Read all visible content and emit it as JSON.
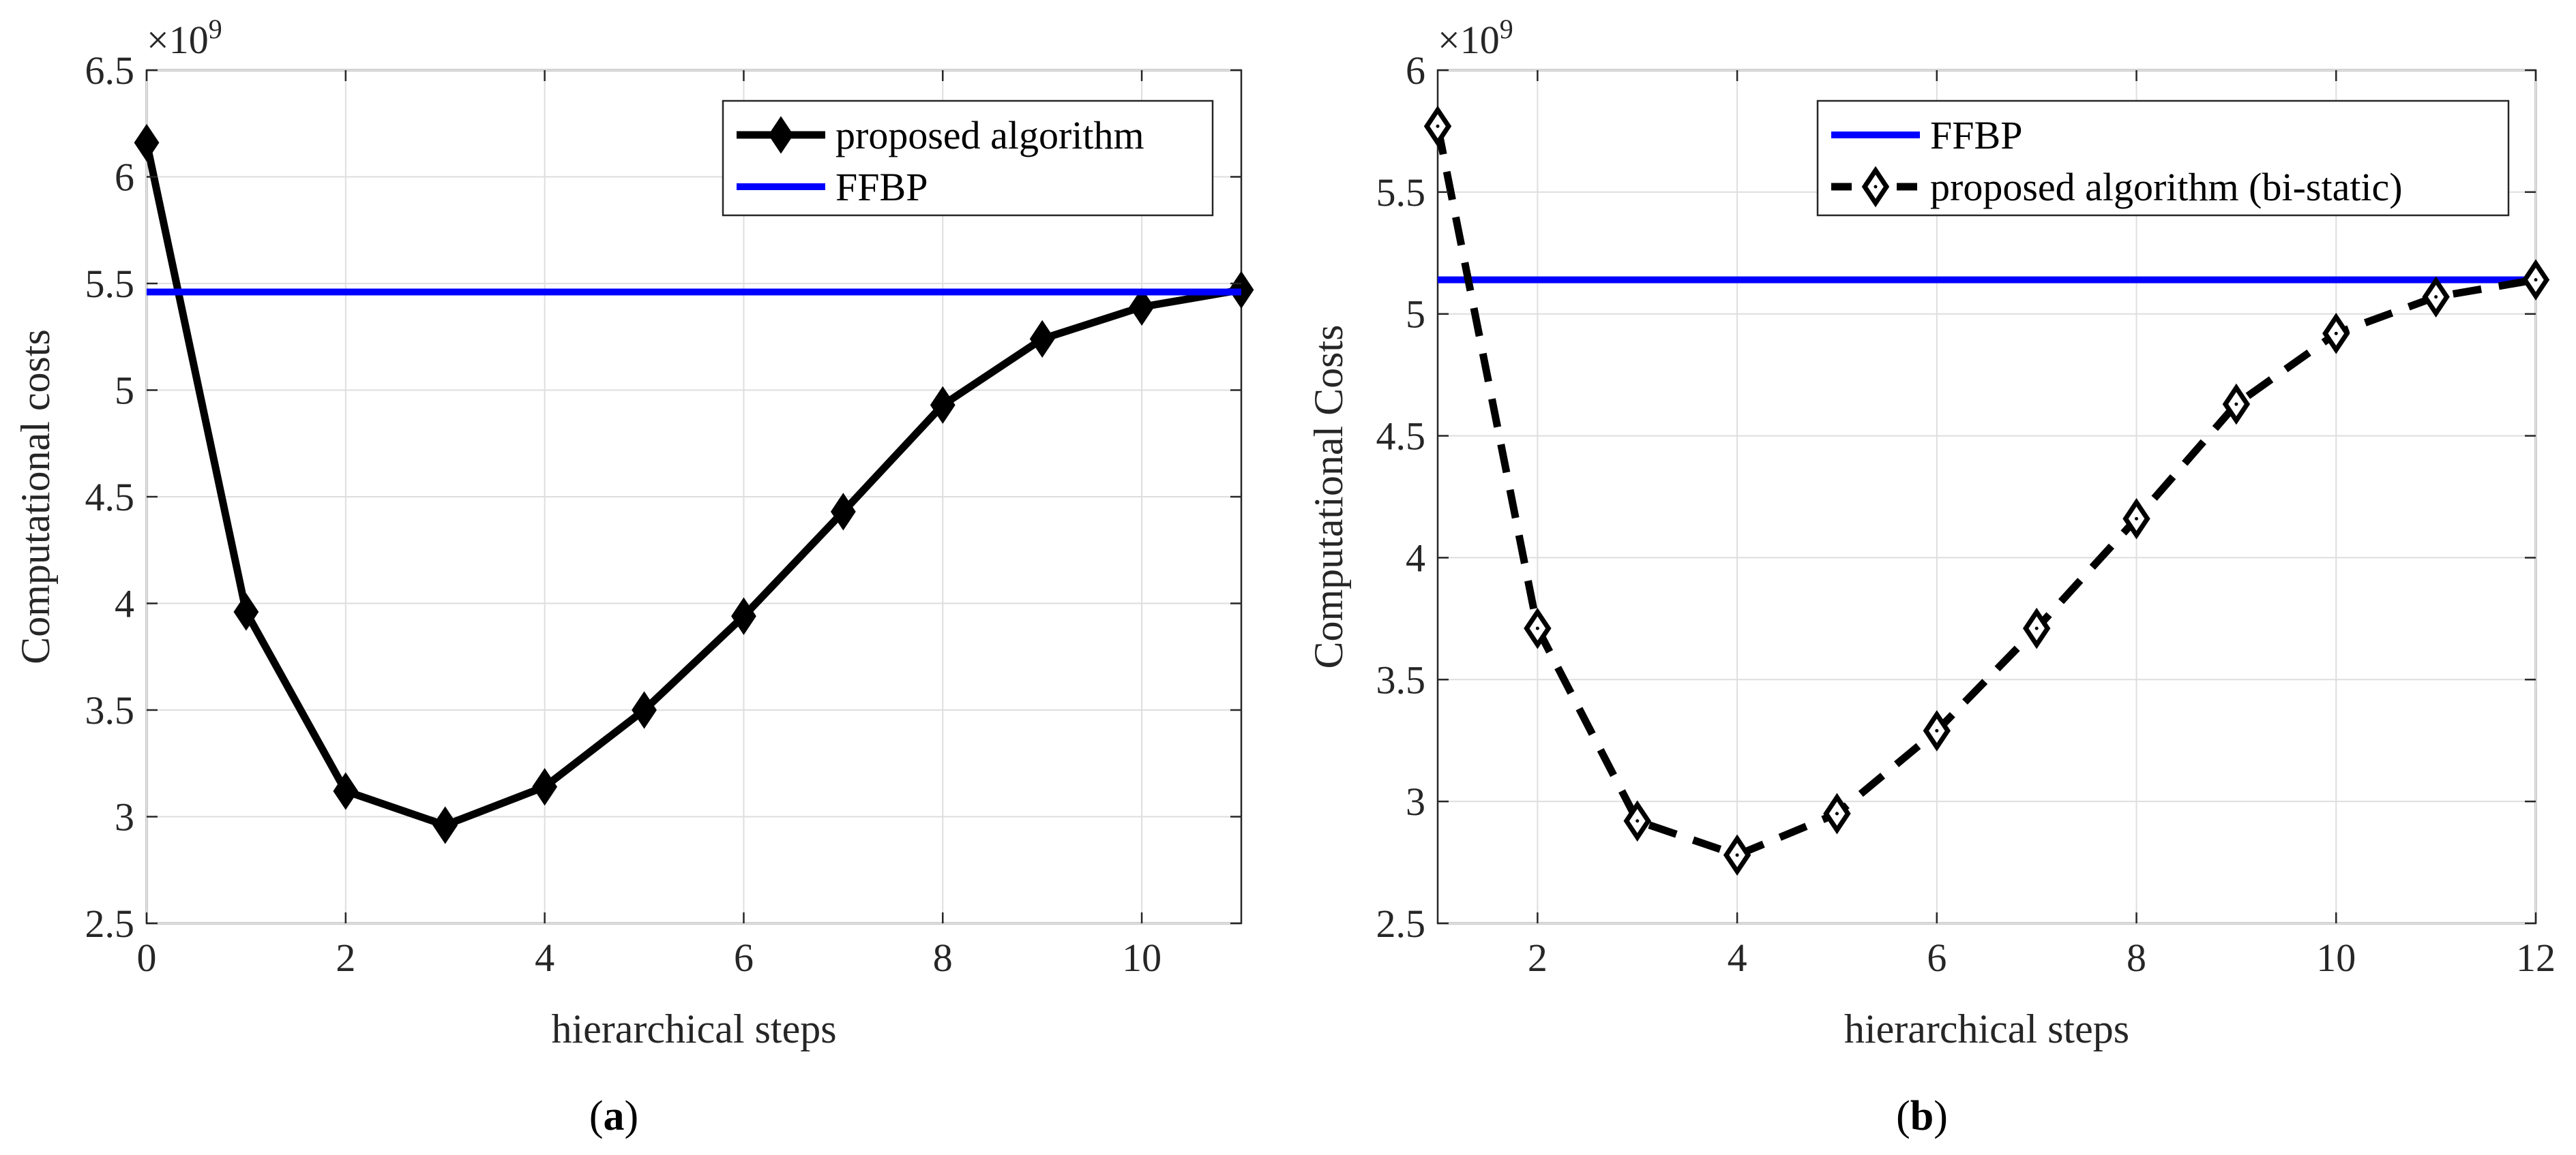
{
  "figure": {
    "panels": [
      {
        "id": "a",
        "label_prefix": "(",
        "label_letter": "a",
        "label_suffix": ")"
      },
      {
        "id": "b",
        "label_prefix": "(",
        "label_letter": "b",
        "label_suffix": ")"
      }
    ]
  },
  "chart_data": [
    {
      "type": "line",
      "title": "",
      "xlabel": "hierarchical steps",
      "ylabel": "Computational costs",
      "exponent_label": "×10",
      "exponent_power": "9",
      "xlim": [
        0,
        11
      ],
      "ylim": [
        2.5,
        6.5
      ],
      "xticks": [
        0,
        2,
        4,
        6,
        8,
        10
      ],
      "xtick_labels": [
        "0",
        "2",
        "4",
        "6",
        "8",
        "10"
      ],
      "yticks": [
        2.5,
        3,
        3.5,
        4,
        4.5,
        5,
        5.5,
        6,
        6.5
      ],
      "ytick_labels": [
        "2.5",
        "3",
        "3.5",
        "4",
        "4.5",
        "5",
        "5.5",
        "6",
        "6.5"
      ],
      "grid": true,
      "legend_position": "top-right",
      "series": [
        {
          "name": "proposed algorithm",
          "color": "#000000",
          "style": "solid",
          "marker": "filled-diamond",
          "x": [
            0,
            1,
            2,
            3,
            4,
            5,
            6,
            7,
            8,
            9,
            10,
            11
          ],
          "values": [
            6.16,
            3.96,
            3.12,
            2.96,
            3.14,
            3.5,
            3.94,
            4.43,
            4.93,
            5.24,
            5.39,
            5.47
          ]
        },
        {
          "name": "FFBP",
          "color": "#0000ff",
          "style": "solid",
          "marker": "none",
          "x": [
            0,
            11
          ],
          "values": [
            5.46,
            5.46
          ]
        }
      ]
    },
    {
      "type": "line",
      "title": "",
      "xlabel": "hierarchical steps",
      "ylabel": "Computational Costs",
      "exponent_label": "×10",
      "exponent_power": "9",
      "xlim": [
        1,
        12
      ],
      "ylim": [
        2.5,
        6
      ],
      "xticks": [
        2,
        4,
        6,
        8,
        10,
        12
      ],
      "xtick_labels": [
        "2",
        "4",
        "6",
        "8",
        "10",
        "12"
      ],
      "yticks": [
        2.5,
        3,
        3.5,
        4,
        4.5,
        5,
        5.5,
        6
      ],
      "ytick_labels": [
        "2.5",
        "3",
        "3.5",
        "4",
        "4.5",
        "5",
        "5.5",
        "6"
      ],
      "grid": true,
      "legend_position": "top-right",
      "series": [
        {
          "name": "FFBP",
          "color": "#0000ff",
          "style": "solid",
          "marker": "none",
          "x": [
            1,
            12
          ],
          "values": [
            5.14,
            5.14
          ]
        },
        {
          "name": "proposed algorithm (bi-static)",
          "color": "#000000",
          "style": "dashed",
          "marker": "open-diamond",
          "x": [
            1,
            2,
            3,
            4,
            5,
            6,
            7,
            8,
            9,
            10,
            11,
            12
          ],
          "values": [
            5.77,
            3.71,
            2.92,
            2.78,
            2.95,
            3.29,
            3.71,
            4.16,
            4.63,
            4.92,
            5.07,
            5.14
          ]
        }
      ]
    }
  ]
}
